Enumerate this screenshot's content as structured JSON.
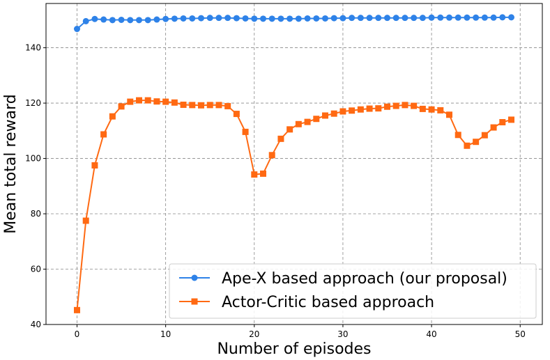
{
  "chart_data": {
    "type": "line",
    "title": "",
    "xlabel": "Number of episodes",
    "ylabel": "Mean total reward",
    "xlim": [
      -3.5,
      52.5
    ],
    "ylim": [
      40,
      156
    ],
    "xticks": [
      0,
      10,
      20,
      30,
      40,
      50
    ],
    "yticks": [
      40,
      60,
      80,
      100,
      120,
      140
    ],
    "grid": true,
    "legend_position": "lower-right",
    "series": [
      {
        "name": "Ape-X based approach (our proposal)",
        "color": "#2e82e8",
        "marker": "circle",
        "x": [
          0,
          1,
          2,
          3,
          4,
          5,
          6,
          7,
          8,
          9,
          10,
          11,
          12,
          13,
          14,
          15,
          16,
          17,
          18,
          19,
          20,
          21,
          22,
          23,
          24,
          25,
          26,
          27,
          28,
          29,
          30,
          31,
          32,
          33,
          34,
          35,
          36,
          37,
          38,
          39,
          40,
          41,
          42,
          43,
          44,
          45,
          46,
          47,
          48,
          49
        ],
        "values": [
          146.8,
          149.6,
          150.4,
          150.2,
          150.0,
          150.1,
          150.0,
          150.0,
          150.0,
          150.2,
          150.4,
          150.5,
          150.6,
          150.6,
          150.7,
          150.8,
          150.8,
          150.8,
          150.7,
          150.6,
          150.5,
          150.5,
          150.5,
          150.5,
          150.5,
          150.5,
          150.6,
          150.6,
          150.6,
          150.7,
          150.7,
          150.8,
          150.8,
          150.8,
          150.8,
          150.8,
          150.8,
          150.8,
          150.8,
          150.8,
          150.9,
          150.9,
          150.9,
          150.9,
          150.9,
          150.9,
          150.9,
          150.9,
          151.0,
          151.0
        ]
      },
      {
        "name": "Actor-Critic based approach",
        "color": "#ff6912",
        "marker": "square",
        "x": [
          0,
          1,
          2,
          3,
          4,
          5,
          6,
          7,
          8,
          9,
          10,
          11,
          12,
          13,
          14,
          15,
          16,
          17,
          18,
          19,
          20,
          21,
          22,
          23,
          24,
          25,
          26,
          27,
          28,
          29,
          30,
          31,
          32,
          33,
          34,
          35,
          36,
          37,
          38,
          39,
          40,
          41,
          42,
          43,
          44,
          45,
          46,
          47,
          48,
          49
        ],
        "values": [
          45.2,
          77.5,
          97.5,
          108.7,
          115.2,
          118.8,
          120.5,
          121.0,
          121.0,
          120.6,
          120.5,
          120.2,
          119.4,
          119.3,
          119.2,
          119.3,
          119.3,
          118.9,
          116.1,
          109.6,
          94.2,
          94.5,
          101.2,
          107.1,
          110.5,
          112.4,
          113.2,
          114.3,
          115.5,
          116.2,
          117.0,
          117.3,
          117.7,
          118.0,
          118.1,
          118.7,
          119.0,
          119.3,
          119.0,
          117.9,
          117.7,
          117.4,
          115.8,
          108.5,
          104.6,
          106.0,
          108.4,
          111.2,
          113.1,
          114.0
        ]
      }
    ]
  }
}
